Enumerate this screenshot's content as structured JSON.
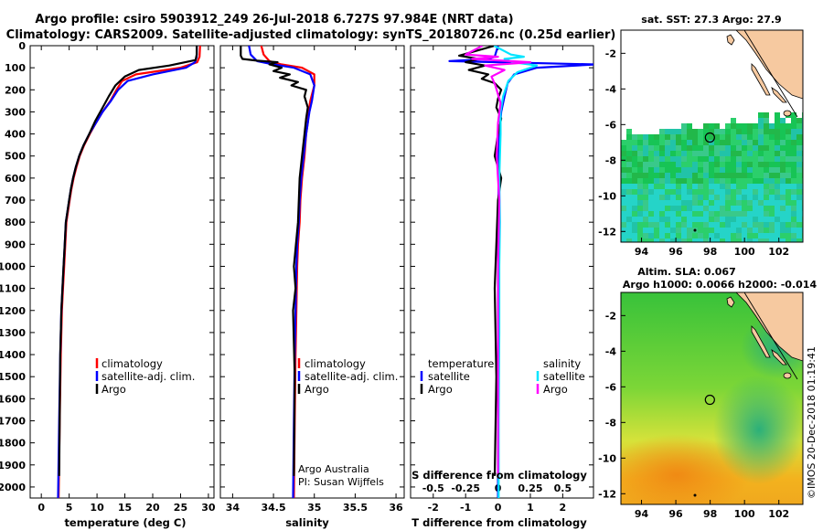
{
  "figure": {
    "title_line1": "Argo profile: csiro 5903912_249 26-Jul-2018 6.727S 97.984E (NRT data)",
    "title_line2": "Climatology: CARS2009. Satellite-adjusted climatology: synTS_20180726.nc (0.25d earlier)",
    "credit": "©IMOS 20-Dec-2018 01:19:41"
  },
  "chart_data": [
    {
      "id": "temperature",
      "type": "line",
      "xlabel": "temperature (deg C)",
      "ylabel": "",
      "xlim": [
        -2,
        31
      ],
      "ylim": [
        2050,
        0
      ],
      "xticks": [
        "0",
        "5",
        "10",
        "15",
        "20",
        "25",
        "30"
      ],
      "xtick_values": [
        0,
        5,
        10,
        15,
        20,
        25,
        30
      ],
      "yticks": [
        "0",
        "100",
        "200",
        "300",
        "400",
        "500",
        "600",
        "700",
        "800",
        "900",
        "1000",
        "1100",
        "1200",
        "1300",
        "1400",
        "1500",
        "1600",
        "1700",
        "1800",
        "1900",
        "2000"
      ],
      "ytick_values": [
        0,
        100,
        200,
        300,
        400,
        500,
        600,
        700,
        800,
        900,
        1000,
        1100,
        1200,
        1300,
        1400,
        1500,
        1600,
        1700,
        1800,
        1900,
        2000
      ],
      "legend": [
        "climatology",
        "satellite-adj. clim.",
        "Argo"
      ],
      "series": [
        {
          "name": "climatology",
          "color": "#ff0000",
          "x": [
            28.5,
            28.4,
            28.0,
            25.0,
            17.0,
            14.5,
            13.5,
            12.4,
            11.0,
            9.8,
            8.7,
            7.7,
            6.9,
            6.3,
            5.8,
            5.4,
            5.1,
            4.8,
            4.5,
            4.3,
            4.1,
            3.9,
            3.7,
            3.5,
            3.3,
            3.1
          ],
          "y": [
            0,
            50,
            75,
            100,
            130,
            160,
            200,
            250,
            300,
            350,
            400,
            450,
            500,
            550,
            600,
            650,
            700,
            750,
            800,
            900,
            1000,
            1100,
            1200,
            1400,
            1700,
            2050
          ]
        },
        {
          "name": "satellite-adj. clim.",
          "color": "#0000ff",
          "x": [
            27.9,
            27.9,
            27.6,
            26.0,
            20.0,
            15.5,
            13.8,
            12.5,
            11.0,
            9.8,
            8.6,
            7.6,
            6.8,
            6.2,
            5.7,
            5.3,
            5.0,
            4.7,
            4.4,
            4.2,
            4.0,
            3.8,
            3.6,
            3.4,
            3.2,
            3.0
          ],
          "y": [
            0,
            50,
            75,
            100,
            130,
            160,
            200,
            250,
            300,
            350,
            400,
            450,
            500,
            550,
            600,
            650,
            700,
            750,
            800,
            900,
            1000,
            1100,
            1200,
            1400,
            1700,
            2050
          ]
        },
        {
          "name": "Argo",
          "color": "#000000",
          "x": [
            27.9,
            27.9,
            27.7,
            23.0,
            17.5,
            15.0,
            13.3,
            12.1,
            10.8,
            9.7,
            8.6,
            7.6,
            6.8,
            6.2,
            5.7,
            5.3,
            5.0,
            4.7,
            4.4,
            4.2,
            4.0,
            3.8,
            3.6,
            3.4,
            3.2
          ],
          "y": [
            0,
            40,
            65,
            90,
            110,
            140,
            180,
            230,
            290,
            340,
            400,
            450,
            500,
            550,
            600,
            650,
            700,
            750,
            800,
            900,
            1000,
            1100,
            1200,
            1400,
            1950
          ]
        }
      ]
    },
    {
      "id": "salinity",
      "type": "line",
      "xlabel": "salinity",
      "xlim": [
        33.85,
        36.1
      ],
      "ylim": [
        2050,
        0
      ],
      "xticks": [
        "34",
        "34.5",
        "35",
        "35.5",
        "36"
      ],
      "xtick_values": [
        34,
        34.5,
        35,
        35.5,
        36
      ],
      "legend": [
        "climatology",
        "satellite-adj. clim.",
        "Argo"
      ],
      "note_lines": [
        "Argo Australia",
        "PI: Susan Wijffels"
      ],
      "series": [
        {
          "name": "climatology",
          "color": "#ff0000",
          "x": [
            34.35,
            34.38,
            34.45,
            34.6,
            34.85,
            35.0,
            35.0,
            34.95,
            34.93,
            34.92,
            34.9,
            34.88,
            34.85,
            34.83,
            34.82,
            34.8,
            34.79,
            34.78,
            34.77,
            34.76,
            34.75
          ],
          "y": [
            0,
            40,
            70,
            85,
            100,
            130,
            180,
            250,
            300,
            350,
            400,
            500,
            600,
            700,
            800,
            900,
            1000,
            1200,
            1400,
            1700,
            2050
          ]
        },
        {
          "name": "satellite-adj. clim.",
          "color": "#0000ff",
          "x": [
            34.2,
            34.22,
            34.3,
            34.5,
            34.75,
            34.95,
            35.0,
            34.97,
            34.94,
            34.92,
            34.9,
            34.87,
            34.84,
            34.82,
            34.81,
            34.79,
            34.78,
            34.77,
            34.76,
            34.75,
            34.74
          ],
          "y": [
            0,
            40,
            70,
            85,
            100,
            130,
            180,
            250,
            300,
            350,
            400,
            500,
            600,
            700,
            800,
            900,
            1000,
            1200,
            1400,
            1700,
            2050
          ]
        },
        {
          "name": "Argo",
          "color": "#000000",
          "x": [
            34.1,
            34.1,
            34.12,
            34.3,
            34.55,
            34.45,
            34.6,
            34.5,
            34.7,
            34.58,
            34.8,
            34.72,
            34.9,
            34.88,
            34.92,
            34.9,
            34.88,
            34.85,
            34.82,
            34.8,
            34.75,
            34.77,
            34.74,
            34.76,
            34.75
          ],
          "y": [
            0,
            45,
            60,
            68,
            75,
            85,
            100,
            115,
            130,
            145,
            165,
            180,
            200,
            230,
            280,
            330,
            400,
            500,
            600,
            800,
            1000,
            1100,
            1200,
            1500,
            1950
          ]
        }
      ]
    },
    {
      "id": "differences",
      "type": "line",
      "xlabel": "T difference from climatology",
      "secondary_xlabel": "S difference from climatology",
      "xlim": [
        -2.7,
        2.95
      ],
      "ylim": [
        2050,
        0
      ],
      "xticks": [
        "-2",
        "-1",
        "0",
        "1",
        "2"
      ],
      "xtick_values": [
        -2,
        -1,
        0,
        1,
        2
      ],
      "secondary_xticks": [
        "-0.5",
        "-0.25",
        "0",
        "0.25",
        "0.5"
      ],
      "secondary_xtick_values": [
        -0.5,
        -0.25,
        0,
        0.25,
        0.5
      ],
      "legend_left_title": "temperature",
      "legend_right_title": "salinity",
      "legend_left": [
        "satellite",
        "Argo"
      ],
      "legend_right": [
        "satellite",
        "Argo"
      ],
      "series": [
        {
          "name": "T satellite",
          "color": "#0000ff",
          "x": [
            0,
            -0.1,
            -0.3,
            -1.5,
            3.0,
            1.2,
            0.5,
            0.3,
            0.2,
            0.1,
            0.05,
            0.02,
            0.02,
            0.01,
            0.01,
            0.0,
            0.0,
            0.0
          ],
          "y": [
            0,
            50,
            60,
            70,
            85,
            100,
            130,
            170,
            230,
            300,
            400,
            500,
            600,
            800,
            1000,
            1300,
            1700,
            2050
          ]
        },
        {
          "name": "T Argo",
          "color": "#000000",
          "x": [
            -0.1,
            -1.2,
            -0.6,
            -1.0,
            -0.4,
            -0.9,
            -0.3,
            -0.5,
            -0.1,
            0.1,
            0.0,
            -0.05,
            0.1,
            0.0,
            -0.1,
            0.1,
            0.0,
            -0.05,
            -0.1,
            -0.05,
            -0.1
          ],
          "y": [
            0,
            45,
            60,
            75,
            90,
            110,
            130,
            150,
            170,
            200,
            240,
            280,
            330,
            400,
            500,
            600,
            700,
            900,
            1100,
            1500,
            1950
          ]
        },
        {
          "name": "S satellite",
          "color": "#00e5ff",
          "x": [
            -0.03,
            0.1,
            0.2,
            0.05,
            0.12,
            0.3,
            0.15,
            0.08,
            0.04,
            0.02,
            0.02,
            0.01,
            0.015,
            0.01,
            0.01,
            0.005,
            0.005
          ],
          "y": [
            0,
            40,
            50,
            60,
            75,
            90,
            120,
            160,
            230,
            300,
            400,
            600,
            800,
            1000,
            1300,
            1700,
            2050
          ]
        },
        {
          "name": "S Argo",
          "color": "#ff00ff",
          "x": [
            -0.12,
            -0.25,
            0.0,
            -0.2,
            0.25,
            -0.1,
            0.05,
            -0.05,
            -0.02,
            0.02,
            0.0,
            -0.01,
            0.01,
            0.0,
            0.0,
            0.0
          ],
          "y": [
            0,
            40,
            50,
            60,
            75,
            90,
            110,
            140,
            180,
            260,
            350,
            500,
            700,
            1000,
            1500,
            1950
          ]
        }
      ]
    }
  ],
  "maps": [
    {
      "id": "sst-map",
      "title": "sat. SST: 27.3 Argo: 27.9",
      "xticks": [
        "94",
        "96",
        "98",
        "100",
        "102"
      ],
      "yticks": [
        "-2",
        "-4",
        "-6",
        "-8",
        "-10",
        "-12"
      ],
      "lon_values": [
        94,
        96,
        98,
        100,
        102
      ],
      "lat_values": [
        -2,
        -4,
        -6,
        -8,
        -10,
        -12
      ],
      "float_lon": 97.984,
      "float_lat": -6.727
    },
    {
      "id": "sla-map",
      "title_line1": "Altim. SLA: 0.067",
      "title_line2": "Argo h1000: 0.0066 h2000: -0.014",
      "xticks": [
        "94",
        "96",
        "98",
        "100",
        "102"
      ],
      "yticks": [
        "-2",
        "-4",
        "-6",
        "-8",
        "-10",
        "-12"
      ],
      "lon_values": [
        94,
        96,
        98,
        100,
        102
      ],
      "lat_values": [
        -2,
        -4,
        -6,
        -8,
        -10,
        -12
      ],
      "float_lon": 97.984,
      "float_lat": -6.727
    }
  ]
}
